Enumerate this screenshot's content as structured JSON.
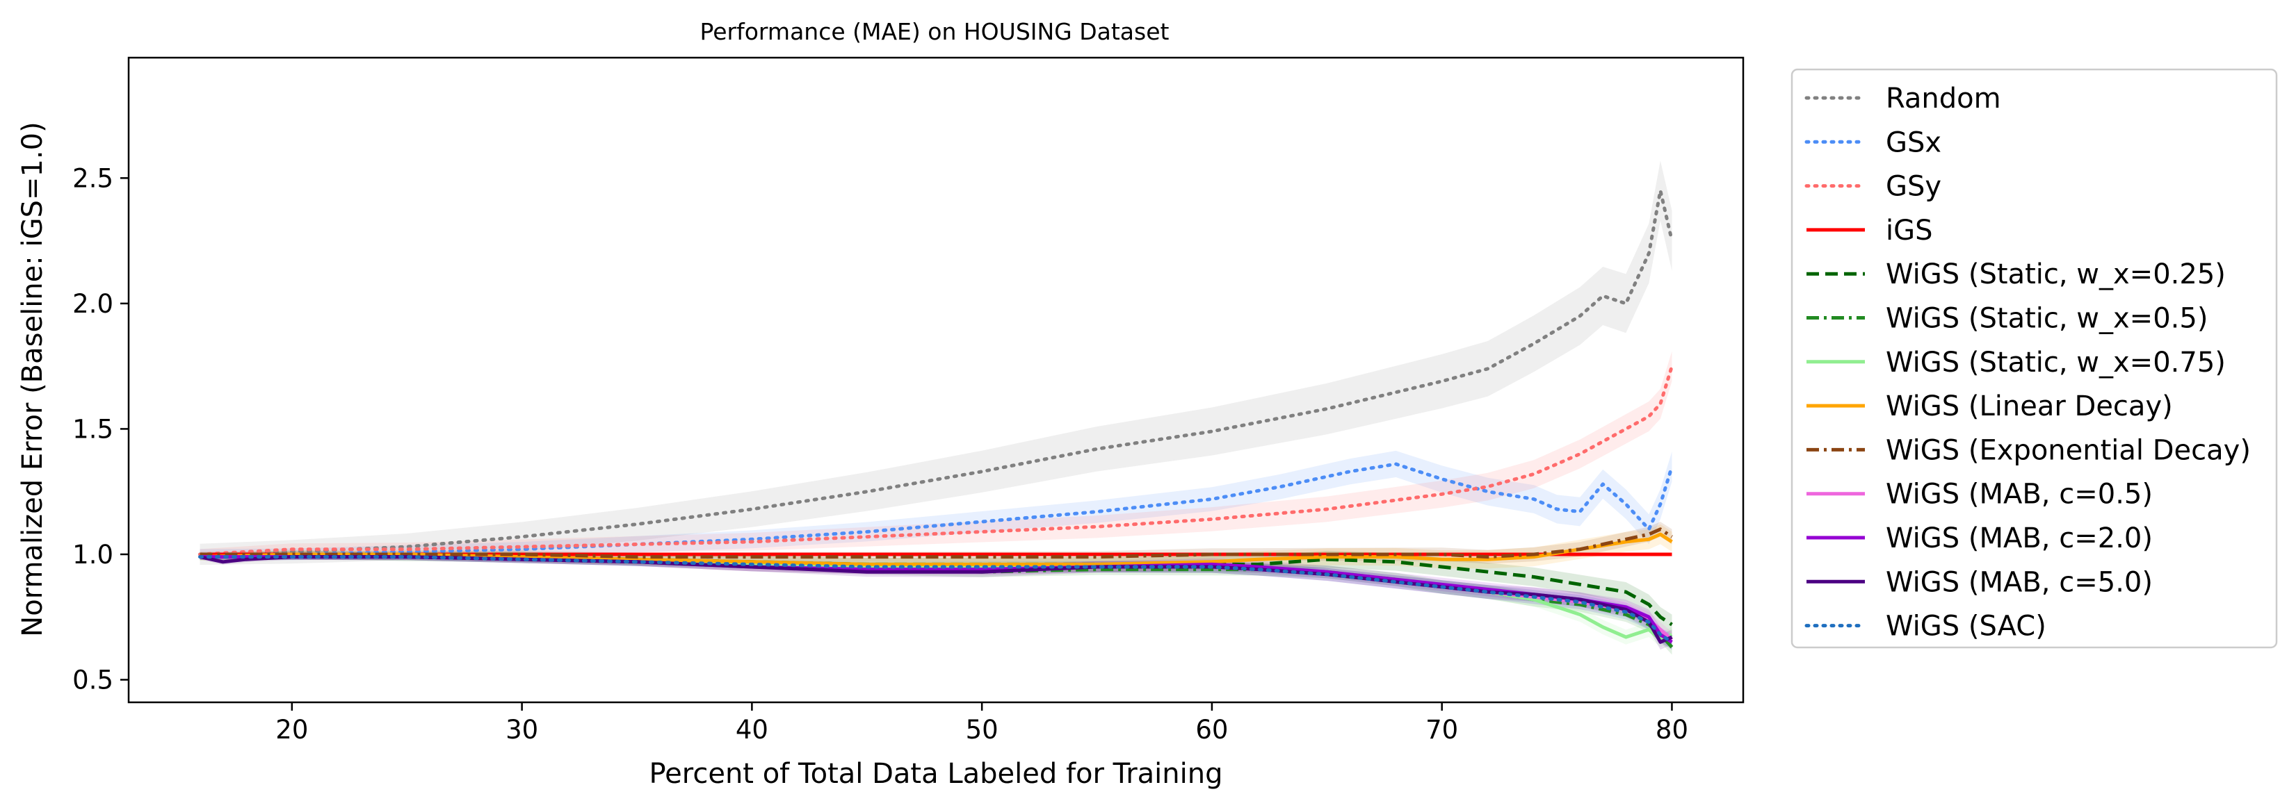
{
  "chart_data": {
    "type": "line",
    "title": "Performance (MAE) on HOUSING Dataset",
    "xlabel": "Percent of Total Data Labeled for Training",
    "ylabel": "Normalized Error (Baseline: iGS=1.0)",
    "xlim": [
      12.9,
      83.1
    ],
    "ylim": [
      0.41,
      2.98
    ],
    "xticks": [
      20,
      30,
      40,
      50,
      60,
      70,
      80
    ],
    "yticks": [
      0.5,
      1.0,
      1.5,
      2.0,
      2.5
    ],
    "xtick_labels": [
      "20",
      "30",
      "40",
      "50",
      "60",
      "70",
      "80"
    ],
    "ytick_labels": [
      "0.5",
      "1.0",
      "1.5",
      "2.0",
      "2.5"
    ],
    "grid": false,
    "legend_position": "outside-right",
    "series": [
      {
        "name": "Random",
        "color": "#808080",
        "style": "dotted",
        "band": 0.12,
        "x": [
          16,
          20,
          25,
          30,
          35,
          40,
          45,
          50,
          55,
          60,
          65,
          70,
          72,
          74,
          76,
          77,
          78,
          79,
          79.5,
          80
        ],
        "y": [
          1.0,
          1.01,
          1.03,
          1.07,
          1.12,
          1.18,
          1.25,
          1.33,
          1.42,
          1.49,
          1.58,
          1.69,
          1.74,
          1.84,
          1.95,
          2.03,
          2.0,
          2.2,
          2.45,
          2.25
        ]
      },
      {
        "name": "GSx",
        "color": "#4C8DF6",
        "style": "dotted",
        "band": 0.06,
        "x": [
          16,
          20,
          25,
          30,
          35,
          40,
          45,
          50,
          55,
          60,
          63,
          66,
          68,
          70,
          72,
          74,
          75,
          76,
          77,
          78,
          79,
          79.5,
          80
        ],
        "y": [
          1.0,
          1.0,
          1.01,
          1.02,
          1.04,
          1.06,
          1.09,
          1.13,
          1.17,
          1.22,
          1.27,
          1.33,
          1.36,
          1.3,
          1.25,
          1.22,
          1.18,
          1.17,
          1.28,
          1.2,
          1.1,
          1.2,
          1.35
        ]
      },
      {
        "name": "GSy",
        "color": "#FF6B6B",
        "style": "dotted",
        "band": 0.06,
        "x": [
          16,
          20,
          25,
          30,
          35,
          40,
          45,
          50,
          55,
          60,
          65,
          70,
          72,
          74,
          76,
          78,
          79,
          79.5,
          80
        ],
        "y": [
          1.0,
          1.02,
          1.02,
          1.03,
          1.04,
          1.05,
          1.07,
          1.09,
          1.11,
          1.14,
          1.18,
          1.24,
          1.27,
          1.32,
          1.4,
          1.5,
          1.55,
          1.6,
          1.75
        ]
      },
      {
        "name": "iGS",
        "color": "#FF0000",
        "style": "solid",
        "band": 0,
        "x": [
          16,
          80
        ],
        "y": [
          1.0,
          1.0
        ]
      },
      {
        "name": "WiGS (Static, w_x=0.25)",
        "color": "#006400",
        "style": "dashed",
        "band": 0.04,
        "x": [
          16,
          20,
          25,
          30,
          35,
          40,
          45,
          50,
          55,
          60,
          62,
          65,
          68,
          70,
          72,
          74,
          76,
          78,
          79,
          79.5,
          80
        ],
        "y": [
          0.99,
          1.0,
          0.99,
          0.99,
          0.98,
          0.97,
          0.96,
          0.96,
          0.96,
          0.96,
          0.96,
          0.98,
          0.97,
          0.95,
          0.93,
          0.91,
          0.88,
          0.85,
          0.8,
          0.75,
          0.72
        ]
      },
      {
        "name": "WiGS (Static, w_x=0.5)",
        "color": "#228B22",
        "style": "dashdot",
        "band": 0.03,
        "x": [
          16,
          20,
          25,
          30,
          35,
          40,
          45,
          50,
          55,
          60,
          62,
          65,
          68,
          70,
          72,
          74,
          76,
          78,
          79,
          79.5,
          80
        ],
        "y": [
          0.99,
          0.99,
          0.99,
          0.98,
          0.97,
          0.95,
          0.94,
          0.93,
          0.94,
          0.94,
          0.94,
          0.93,
          0.9,
          0.87,
          0.85,
          0.82,
          0.8,
          0.76,
          0.72,
          0.68,
          0.63
        ]
      },
      {
        "name": "WiGS (Static, w_x=0.75)",
        "color": "#90EE90",
        "style": "solid",
        "band": 0.03,
        "x": [
          16,
          20,
          25,
          30,
          35,
          40,
          45,
          50,
          55,
          60,
          62,
          65,
          68,
          70,
          72,
          74,
          75,
          76,
          77,
          78,
          79,
          79.5,
          80
        ],
        "y": [
          0.99,
          0.99,
          0.99,
          0.98,
          0.97,
          0.96,
          0.95,
          0.95,
          0.95,
          0.95,
          0.94,
          0.93,
          0.9,
          0.87,
          0.85,
          0.82,
          0.79,
          0.76,
          0.71,
          0.67,
          0.7,
          0.66,
          0.68
        ]
      },
      {
        "name": "WiGS (Linear Decay)",
        "color": "#FFA500",
        "style": "solid",
        "band": 0.04,
        "x": [
          16,
          20,
          25,
          30,
          35,
          40,
          45,
          50,
          55,
          60,
          62,
          65,
          68,
          70,
          72,
          74,
          76,
          78,
          79,
          79.5,
          80
        ],
        "y": [
          0.99,
          1.0,
          1.0,
          0.99,
          0.98,
          0.97,
          0.96,
          0.96,
          0.96,
          0.97,
          0.98,
          0.99,
          0.99,
          0.98,
          0.98,
          0.99,
          1.02,
          1.05,
          1.06,
          1.08,
          1.05
        ]
      },
      {
        "name": "WiGS (Exponential Decay)",
        "color": "#8B4513",
        "style": "dashdot",
        "band": 0.03,
        "x": [
          16,
          20,
          25,
          30,
          35,
          40,
          45,
          50,
          55,
          60,
          62,
          65,
          68,
          70,
          72,
          74,
          76,
          78,
          79,
          79.5,
          80
        ],
        "y": [
          1.0,
          1.0,
          1.0,
          1.0,
          0.99,
          0.99,
          0.99,
          0.99,
          0.99,
          1.0,
          1.0,
          1.0,
          1.0,
          1.0,
          0.99,
          1.0,
          1.02,
          1.06,
          1.08,
          1.1,
          1.07
        ]
      },
      {
        "name": "WiGS (MAB, c=0.5)",
        "color": "#EE66DD",
        "style": "solid",
        "band": 0.03,
        "x": [
          16,
          20,
          25,
          30,
          35,
          40,
          45,
          50,
          55,
          60,
          62,
          65,
          68,
          70,
          72,
          74,
          76,
          78,
          79,
          79.5,
          80
        ],
        "y": [
          0.99,
          0.99,
          0.99,
          0.98,
          0.97,
          0.95,
          0.94,
          0.94,
          0.95,
          0.95,
          0.94,
          0.92,
          0.89,
          0.87,
          0.85,
          0.83,
          0.81,
          0.78,
          0.74,
          0.7,
          0.66
        ]
      },
      {
        "name": "WiGS (MAB, c=2.0)",
        "color": "#9400D3",
        "style": "solid",
        "band": 0.03,
        "x": [
          16,
          20,
          25,
          30,
          35,
          40,
          45,
          50,
          55,
          60,
          62,
          65,
          68,
          70,
          72,
          74,
          76,
          78,
          79,
          79.5,
          80
        ],
        "y": [
          0.99,
          0.99,
          0.99,
          0.98,
          0.97,
          0.95,
          0.94,
          0.94,
          0.95,
          0.96,
          0.95,
          0.93,
          0.9,
          0.88,
          0.86,
          0.84,
          0.82,
          0.79,
          0.75,
          0.68,
          0.65
        ]
      },
      {
        "name": "WiGS (MAB, c=5.0)",
        "color": "#4B0082",
        "style": "solid",
        "band": 0.03,
        "x": [
          16,
          17,
          18,
          20,
          25,
          30,
          35,
          40,
          45,
          50,
          55,
          60,
          62,
          65,
          68,
          70,
          72,
          74,
          76,
          78,
          79,
          79.5,
          80
        ],
        "y": [
          0.99,
          0.97,
          0.98,
          0.99,
          0.99,
          0.98,
          0.97,
          0.95,
          0.93,
          0.93,
          0.95,
          0.95,
          0.94,
          0.92,
          0.89,
          0.87,
          0.85,
          0.84,
          0.82,
          0.78,
          0.73,
          0.65,
          0.67
        ]
      },
      {
        "name": "WiGS (SAC)",
        "color": "#1F6FBF",
        "style": "dotted",
        "band": 0.03,
        "x": [
          16,
          20,
          25,
          30,
          35,
          40,
          45,
          50,
          55,
          60,
          62,
          65,
          68,
          70,
          72,
          74,
          76,
          78,
          79,
          79.5,
          80
        ],
        "y": [
          0.99,
          0.99,
          0.99,
          0.98,
          0.97,
          0.96,
          0.95,
          0.95,
          0.95,
          0.95,
          0.94,
          0.92,
          0.89,
          0.87,
          0.85,
          0.83,
          0.81,
          0.77,
          0.73,
          0.68,
          0.65
        ]
      }
    ]
  }
}
